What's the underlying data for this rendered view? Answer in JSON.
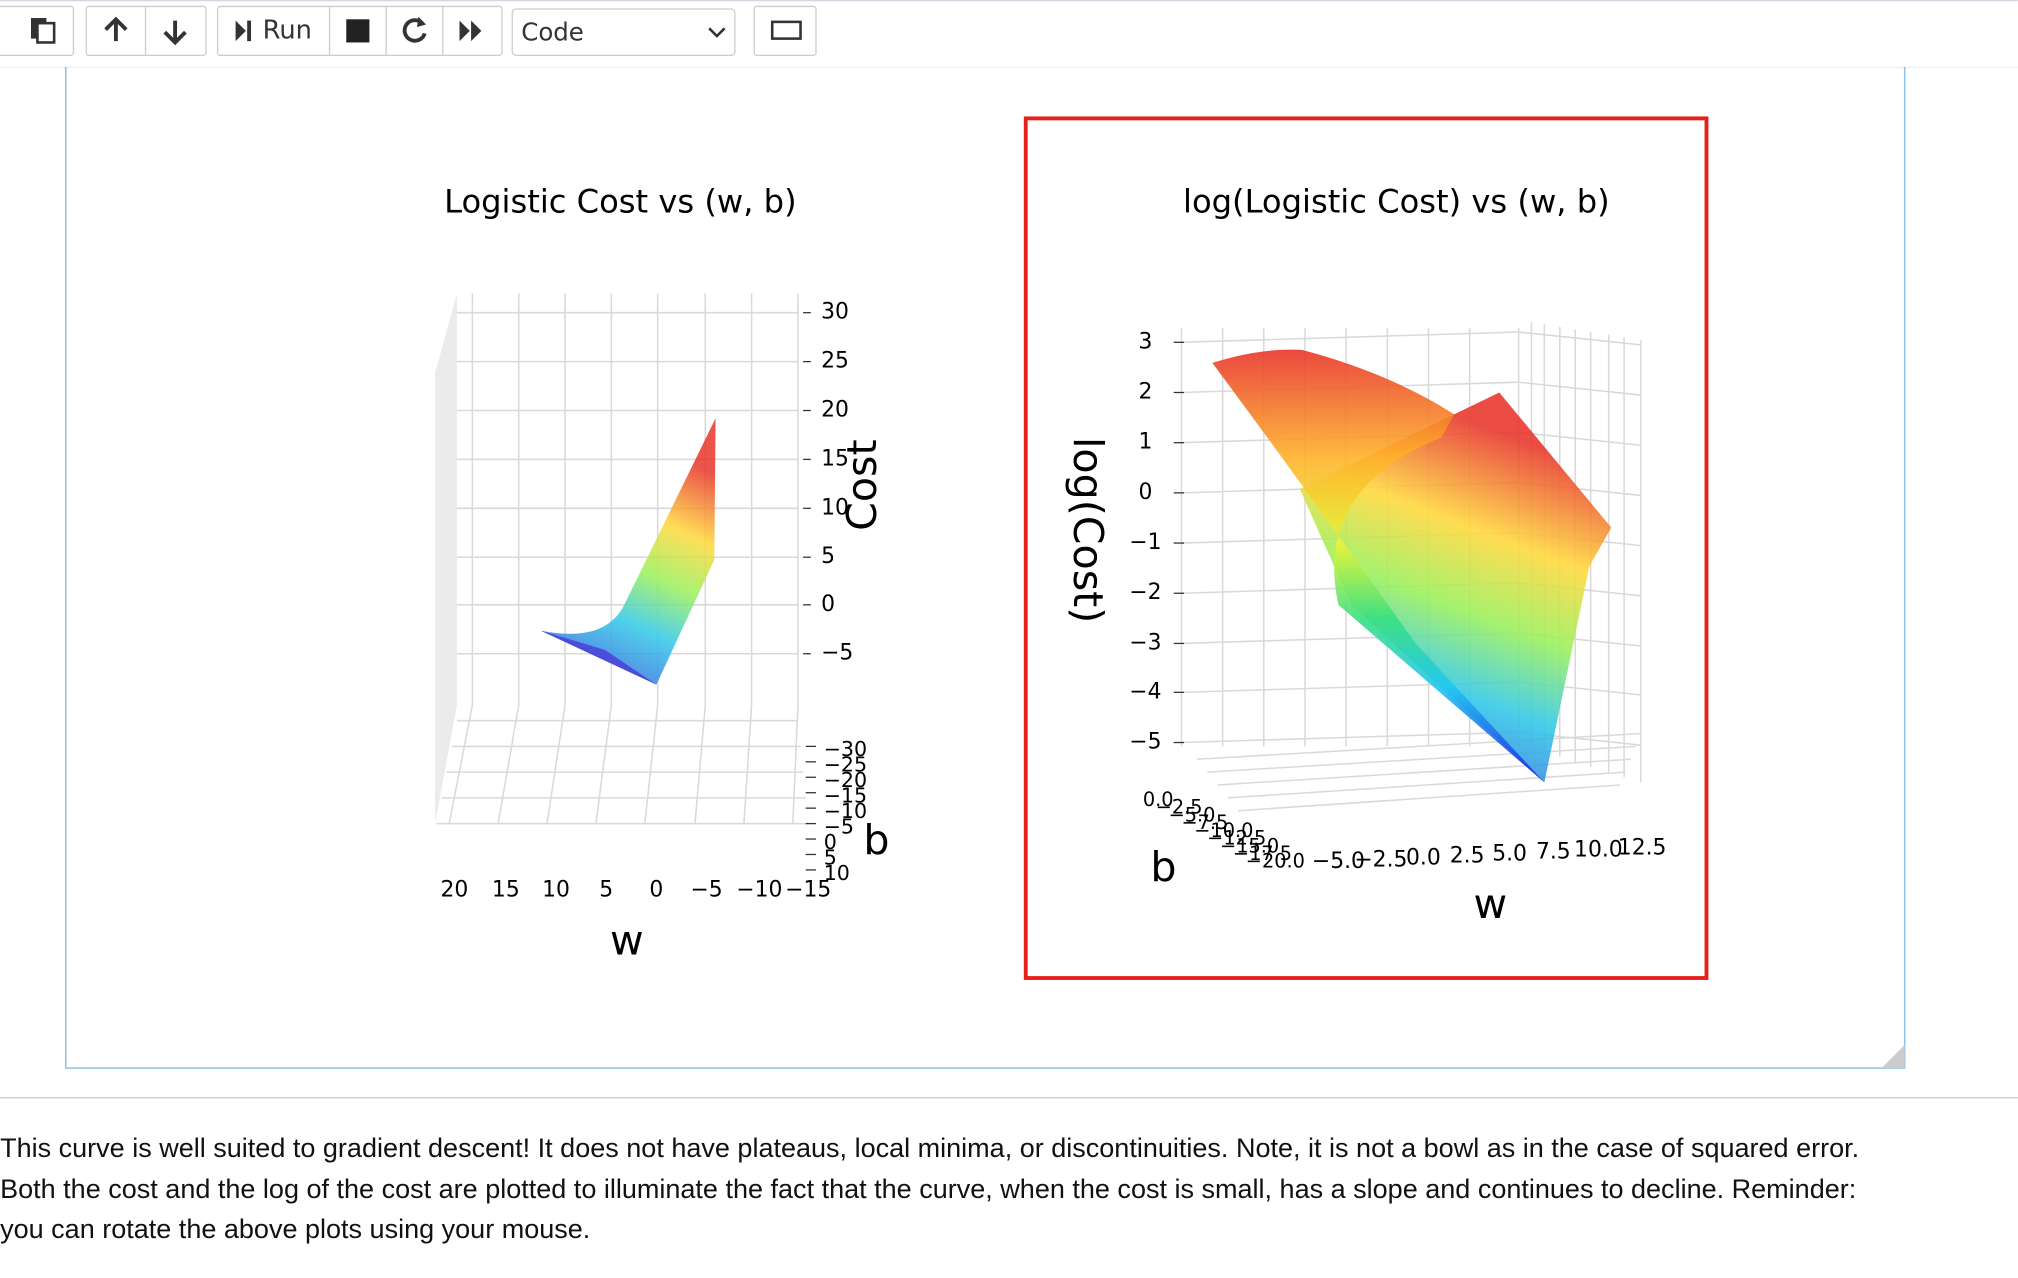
{
  "toolbar": {
    "run": "Run",
    "cell_type": "Code"
  },
  "plots": [
    {
      "title": "Logistic Cost vs (w, b)",
      "x_label": "w",
      "y_label": "b",
      "z_label": "Cost",
      "x_ticks": [
        "20",
        "15",
        "10",
        "5",
        "0",
        "−5",
        "−10",
        "−15"
      ],
      "y_ticks": [
        "−30",
        "−25",
        "−20",
        "−15",
        "−10",
        "−5",
        "0",
        "5",
        "10"
      ],
      "z_ticks": [
        "30",
        "25",
        "20",
        "15",
        "10",
        "5",
        "0",
        "−5"
      ]
    },
    {
      "title": "log(Logistic Cost) vs (w, b)",
      "x_label": "w",
      "y_label": "b",
      "z_label": "log(Cost)",
      "x_ticks": [
        "−5.0",
        "−2.5",
        "0.0",
        "2.5",
        "5.0",
        "7.5",
        "10.0",
        "12.5"
      ],
      "y_ticks": [
        "0.0",
        "−2.5",
        "−5.0",
        "−7.5",
        "−10.0",
        "−12.5",
        "−15.0",
        "−17.5",
        "−20.0"
      ],
      "z_ticks": [
        "3",
        "2",
        "1",
        "0",
        "−1",
        "−2",
        "−3",
        "−4",
        "−5"
      ]
    }
  ],
  "paragraph": [
    "This curve is well suited to gradient descent! It does not have plateaus, local minima, or discontinuities. Note, it is not a bowl as in the case of squared error.",
    "Both the cost and the log of the cost are plotted to illuminate the fact that the curve, when the cost is small, has a slope and continues to decline. Reminder:",
    "you can rotate the above plots using your mouse."
  ]
}
